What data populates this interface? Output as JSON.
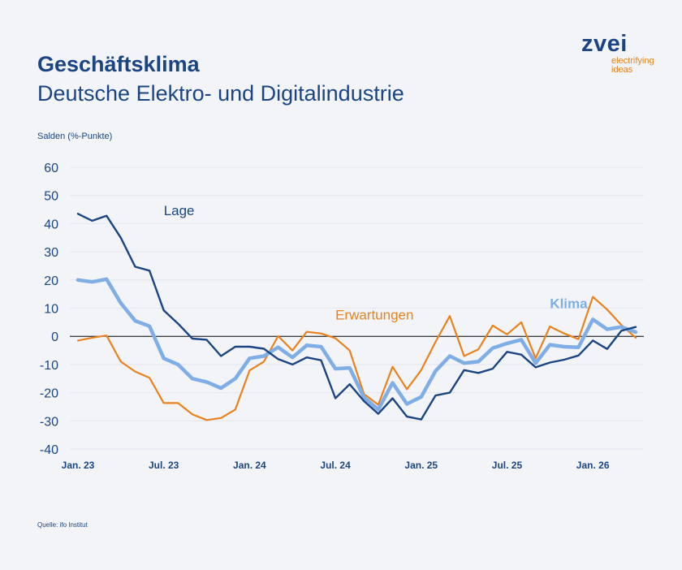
{
  "header": {
    "title": "Geschäftsklima",
    "subtitle": "Deutsche Elektro- und Digitalindustrie"
  },
  "logo": {
    "word": "zvei",
    "tagline_1": "electrifying",
    "tagline_2": "ideas"
  },
  "footer": {
    "source": "Quelle: ifo Institut"
  },
  "colors": {
    "lage": "#1b4582",
    "erwartungen": "#e8821e",
    "klima": "#7faee6",
    "text": "#1b4582"
  },
  "chart_data": {
    "type": "line",
    "ylabel": "Salden (%-Punkte)",
    "ylim": [
      -40,
      60
    ],
    "yticks": [
      60,
      50,
      40,
      30,
      20,
      10,
      0,
      -10,
      -20,
      -30,
      -40
    ],
    "grid": true,
    "x": [
      "2023-01",
      "2023-02",
      "2023-03",
      "2023-04",
      "2023-05",
      "2023-06",
      "2023-07",
      "2023-08",
      "2023-09",
      "2023-10",
      "2023-11",
      "2023-12",
      "2024-01",
      "2024-02",
      "2024-03",
      "2024-04",
      "2024-05",
      "2024-06",
      "2024-07",
      "2024-08",
      "2024-09",
      "2024-10",
      "2024-11",
      "2024-12",
      "2025-01",
      "2025-02",
      "2025-03",
      "2025-04",
      "2025-05",
      "2025-06",
      "2025-07",
      "2025-08",
      "2025-09",
      "2025-10",
      "2025-11",
      "2025-12",
      "2026-01",
      "2026-02",
      "2026-03",
      "2026-04"
    ],
    "xtick_labels": [
      {
        "label": "Jan. 23",
        "x": "2023-01"
      },
      {
        "label": "Jul. 23",
        "x": "2023-07"
      },
      {
        "label": "Jan. 24",
        "x": "2024-01"
      },
      {
        "label": "Jul. 24",
        "x": "2024-07"
      },
      {
        "label": "Jan. 25",
        "x": "2025-01"
      },
      {
        "label": "Jul. 25",
        "x": "2025-07"
      },
      {
        "label": "Jan. 26",
        "x": "2026-01"
      }
    ],
    "series": [
      {
        "name": "Lage",
        "values": [
          43.5,
          41,
          42.8,
          35,
          24.7,
          23.3,
          9.2,
          4.5,
          -0.8,
          -1.2,
          -7,
          -3.7,
          -3.7,
          -4.4,
          -8.1,
          -10,
          -7.5,
          -8.5,
          -22,
          -17,
          -23,
          -27.5,
          -22,
          -28.5,
          -29.5,
          -21,
          -20,
          -12,
          -13,
          -11.5,
          -5.5,
          -6.5,
          -11,
          -9.3,
          -8.3,
          -6.8,
          -1.5,
          -4.5,
          2,
          3.3
        ]
      },
      {
        "name": "Erwartungen",
        "values": [
          -1.5,
          -0.5,
          0.3,
          -9,
          -12.5,
          -14.7,
          -23.7,
          -23.7,
          -27.7,
          -29.7,
          -29,
          -26,
          -12.1,
          -9,
          0.1,
          -5,
          1.6,
          1,
          -0.7,
          -5,
          -20.5,
          -24.3,
          -10.8,
          -18.8,
          -12,
          -2,
          7.2,
          -7,
          -4.6,
          3.8,
          0.7,
          5,
          -7.8,
          3.5,
          1,
          -1,
          14,
          9.5,
          4,
          -0.5
        ]
      },
      {
        "name": "Klima",
        "values": [
          20,
          19.3,
          20.3,
          11.8,
          5.5,
          3.6,
          -7.8,
          -10,
          -15,
          -16.2,
          -18.4,
          -15,
          -7.8,
          -7,
          -3.9,
          -7.5,
          -3.2,
          -3.7,
          -11.5,
          -11.2,
          -21.7,
          -26,
          -16.5,
          -24,
          -21.5,
          -12.3,
          -7,
          -9.5,
          -9,
          -4.2,
          -2.5,
          -1.2,
          -9.5,
          -3,
          -3.7,
          -3.9,
          6,
          2.5,
          3.3,
          1.5
        ]
      }
    ],
    "series_labels": [
      {
        "series": "Lage",
        "text": "Lage",
        "x": "2023-07",
        "y": 43
      },
      {
        "series": "Erwartungen",
        "text": "Erwartungen",
        "x": "2024-07",
        "y": 6
      },
      {
        "series": "Klima",
        "text": "Klima",
        "x": "2025-10",
        "y": 10
      }
    ]
  }
}
